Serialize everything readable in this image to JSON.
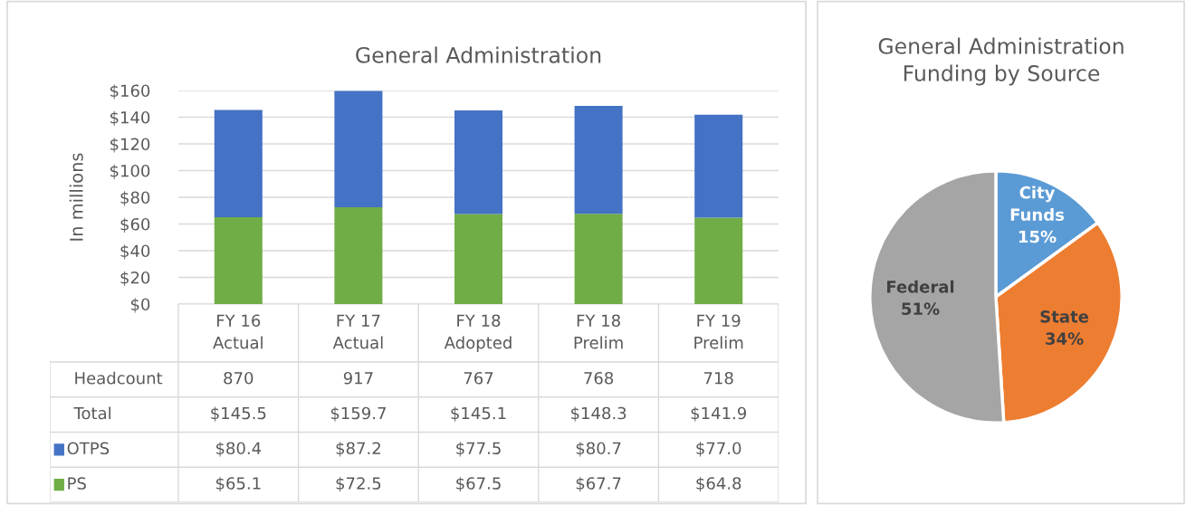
{
  "chart_data": [
    {
      "type": "bar",
      "title": "General Administration",
      "ylabel": "In millions",
      "stacked": true,
      "categories": [
        "FY 16\nActual",
        "FY 17\nActual",
        "FY 18\nAdopted",
        "FY 18\nPrelim",
        "FY 19\nPrelim"
      ],
      "series": [
        {
          "name": "PS",
          "color": "#70ad47",
          "values": [
            65.1,
            72.5,
            67.5,
            67.7,
            64.8
          ],
          "value_labels": [
            "$65.1",
            "$72.5",
            "$67.5",
            "$67.7",
            "$64.8"
          ]
        },
        {
          "name": "OTPS",
          "color": "#4472c4",
          "values": [
            80.4,
            87.2,
            77.5,
            80.7,
            77.0
          ],
          "value_labels": [
            "$80.4",
            "$87.2",
            "$77.5",
            "$80.7",
            "$77.0"
          ]
        }
      ],
      "annotations": [
        "Headcount",
        "870",
        "917",
        "767",
        "768",
        "718",
        "Total",
        "$145.5",
        "$159.7",
        "$145.1",
        "$148.3",
        "$141.9"
      ],
      "ylim": [
        0,
        160
      ],
      "yticks": [
        {
          "value": 0,
          "label": "$0"
        },
        {
          "value": 20,
          "label": "$20"
        },
        {
          "value": 40,
          "label": "$40"
        },
        {
          "value": 60,
          "label": "$60"
        },
        {
          "value": 80,
          "label": "$80"
        },
        {
          "value": 100,
          "label": "$100"
        },
        {
          "value": 120,
          "label": "$120"
        },
        {
          "value": 140,
          "label": "$140"
        },
        {
          "value": 160,
          "label": "$160"
        }
      ],
      "grid": "y",
      "legend": "bottom"
    },
    {
      "type": "pie",
      "title": "General Administration\nFunding by Source",
      "categories": [
        "City\nFunds",
        "State",
        "Federal"
      ],
      "values": [
        15,
        34,
        51
      ],
      "colors": [
        "#5b9bd5",
        "#ed7d31",
        "#a5a5a5"
      ],
      "value_labels": [
        "15%",
        "34%",
        "51%"
      ]
    }
  ]
}
